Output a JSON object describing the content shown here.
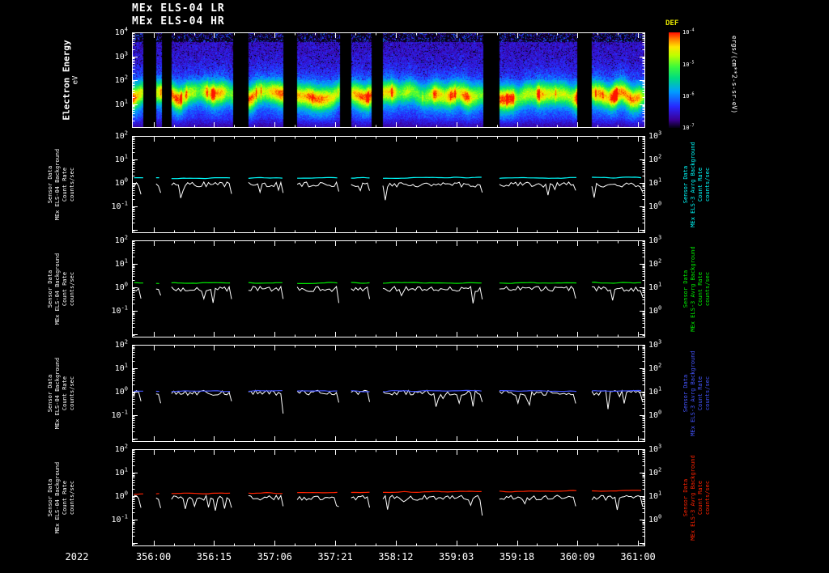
{
  "labels": {
    "title_line1": "MEx ELS-04 LR",
    "title_line2": "MEx ELS-04 HR",
    "spectro_ylabel": "Electron Energy",
    "spectro_yunits": "eV",
    "colorbar_title": "DEF",
    "colorbar_units": "ergs/(cm**2-s-sr-eV)",
    "year": "2022"
  },
  "chart_data": [
    {
      "type": "heatmap",
      "name": "electron-energy-spectrogram",
      "title": "MEx ELS-04 LR / MEx ELS-04 HR",
      "ylabel": "Electron Energy (eV)",
      "y_scale": "log",
      "y_ticks": [
        "10^4",
        "10^3",
        "10^2",
        "10^1"
      ],
      "x_year": "2022",
      "x_ticks": [
        "356:00",
        "356:15",
        "357:06",
        "357:21",
        "358:12",
        "359:03",
        "359:18",
        "360:09",
        "361:00"
      ],
      "colorbar": {
        "title": "DEF",
        "units": "ergs/(cm**2-s-sr-eV)",
        "ticks": [
          "10^-4",
          "10^-5",
          "10^-6",
          "10^-7"
        ]
      },
      "features": {
        "bright_flux_band_energy_ev": [
          5,
          200
        ],
        "band_center_frac": 0.66,
        "band_width_frac": 0.105,
        "background": "low-flux purple/blue above ~300 eV with black speckle; bright green-yellow band with red flecks between ~5 and ~200 eV",
        "data_gaps_frac": [
          [
            0.022,
            0.047
          ],
          [
            0.058,
            0.077
          ],
          [
            0.196,
            0.227
          ],
          [
            0.295,
            0.322
          ],
          [
            0.405,
            0.427
          ],
          [
            0.467,
            0.489
          ],
          [
            0.685,
            0.716
          ],
          [
            0.868,
            0.896
          ]
        ]
      }
    },
    {
      "type": "line",
      "name": "count-rate-panel-1",
      "y_scale": "log",
      "left_label_lines": [
        "Sensor Data",
        "MEx ELS-04 Background",
        "Count Rate",
        "counts/sec"
      ],
      "right_label_lines": [
        "Sensor Data",
        "MEx ELS-3 Avrg Background",
        "Count Rate",
        "counts/sec"
      ],
      "left_ticks": [
        "10^2",
        "10^1",
        "10^0",
        "10^-1"
      ],
      "right_ticks": [
        "10^3",
        "10^2",
        "10^1",
        "10^0"
      ],
      "series": [
        {
          "name": "MEx ELS-3 Avrg Background Count Rate",
          "color": "#00ffff",
          "approx_level": 1.6,
          "trend": 0.05
        },
        {
          "name": "MEx ELS-04 Background Count Rate",
          "color": "#ffffff",
          "approx_level": 0.85,
          "trend": 0.0
        }
      ]
    },
    {
      "type": "line",
      "name": "count-rate-panel-2",
      "y_scale": "log",
      "left_label_lines": [
        "Sensor Data",
        "MEx ELS-04 Background",
        "Count Rate",
        "counts/sec"
      ],
      "right_label_lines": [
        "Sensor Data",
        "MEx ELS-3 Avrg Background",
        "Count Rate",
        "counts/sec"
      ],
      "left_ticks": [
        "10^2",
        "10^1",
        "10^0",
        "10^-1"
      ],
      "right_ticks": [
        "10^3",
        "10^2",
        "10^1",
        "10^0"
      ],
      "series": [
        {
          "name": "MEx ELS-3 Avrg Background Count Rate",
          "color": "#00ee00",
          "approx_level": 1.5,
          "trend": 0.05
        },
        {
          "name": "MEx ELS-04 Background Count Rate",
          "color": "#ffffff",
          "approx_level": 0.85,
          "trend": 0.0
        }
      ]
    },
    {
      "type": "line",
      "name": "count-rate-panel-3",
      "y_scale": "log",
      "left_label_lines": [
        "Sensor Data",
        "MEx ELS-04 Background",
        "Count Rate",
        "counts/sec"
      ],
      "right_label_lines": [
        "Sensor Data",
        "MEx ELS-3 Avrg Background",
        "Count Rate",
        "counts/sec"
      ],
      "left_ticks": [
        "10^2",
        "10^1",
        "10^0",
        "10^-1"
      ],
      "right_ticks": [
        "10^3",
        "10^2",
        "10^1",
        "10^0"
      ],
      "series": [
        {
          "name": "MEx ELS-3 Avrg Background Count Rate",
          "color": "#4455ff",
          "approx_level": 1.05,
          "trend": 0.02
        },
        {
          "name": "MEx ELS-04 Background Count Rate",
          "color": "#ffffff",
          "approx_level": 0.9,
          "trend": 0.0
        }
      ]
    },
    {
      "type": "line",
      "name": "count-rate-panel-4",
      "y_scale": "log",
      "left_label_lines": [
        "Sensor Data",
        "MEx ELS-04 Background",
        "Count Rate",
        "counts/sec"
      ],
      "right_label_lines": [
        "Sensor Data",
        "MEx ELS-3 Avrg Background",
        "Count Rate",
        "counts/sec"
      ],
      "left_ticks": [
        "10^2",
        "10^1",
        "10^0",
        "10^-1"
      ],
      "right_ticks": [
        "10^3",
        "10^2",
        "10^1",
        "10^0"
      ],
      "series": [
        {
          "name": "MEx ELS-3 Avrg Background Count Rate",
          "color": "#ff2200",
          "approx_level": 1.2,
          "trend": 0.45
        },
        {
          "name": "MEx ELS-04 Background Count Rate",
          "color": "#ffffff",
          "approx_level": 0.85,
          "trend": 0.0
        }
      ]
    }
  ]
}
